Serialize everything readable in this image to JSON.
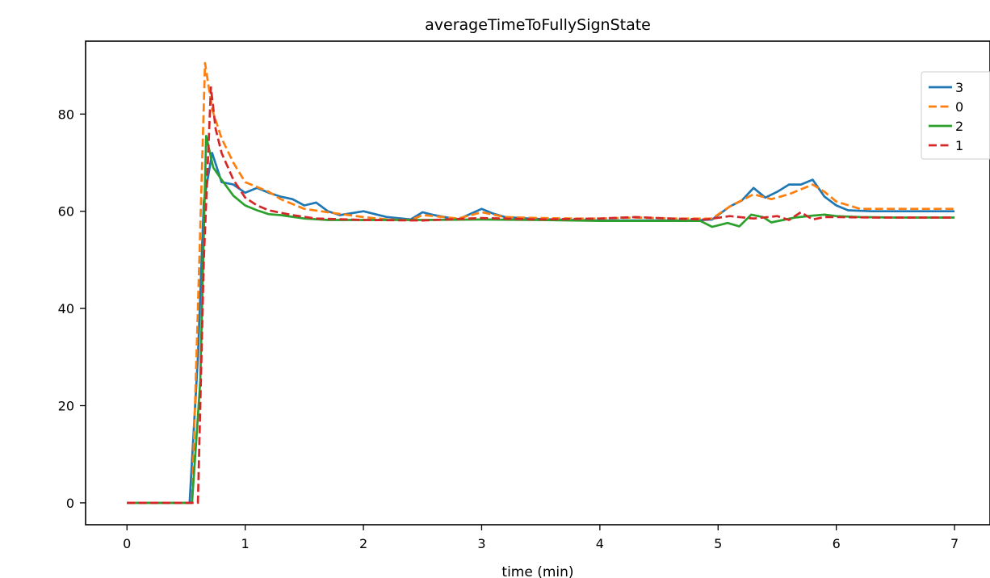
{
  "chart_data": {
    "type": "line",
    "title": "averageTimeToFullySignState",
    "xlabel": "time (min)",
    "ylabel": "",
    "xlim": [
      -0.35,
      7.3
    ],
    "ylim": [
      -4.5,
      95
    ],
    "xticks": [
      0,
      1,
      2,
      3,
      4,
      5,
      6,
      7
    ],
    "yticks": [
      0,
      20,
      40,
      60,
      80
    ],
    "grid": false,
    "legend_position": "top-right",
    "series": [
      {
        "name": "3",
        "color": "#1f77b4",
        "dash": "solid",
        "x": [
          0,
          0.53,
          0.6,
          0.65,
          0.72,
          0.8,
          0.9,
          1.0,
          1.1,
          1.2,
          1.3,
          1.4,
          1.5,
          1.6,
          1.7,
          1.8,
          2.0,
          2.2,
          2.4,
          2.5,
          2.6,
          2.8,
          3.0,
          3.1,
          3.2,
          3.4,
          3.6,
          3.8,
          4.0,
          4.2,
          4.4,
          4.6,
          4.8,
          4.95,
          5.1,
          5.2,
          5.3,
          5.4,
          5.5,
          5.6,
          5.7,
          5.8,
          5.9,
          6.0,
          6.1,
          6.3,
          6.5,
          7.0
        ],
        "y": [
          0,
          0,
          30,
          62,
          72,
          66,
          65.5,
          63.8,
          64.8,
          63.8,
          63,
          62.5,
          61.2,
          61.8,
          60,
          59.2,
          60,
          58.8,
          58.3,
          59.8,
          59.2,
          58.3,
          60.5,
          59.5,
          58.8,
          58.5,
          58.3,
          58.2,
          58.1,
          58.1,
          58.1,
          58.1,
          58.1,
          58.3,
          61,
          62.2,
          64.8,
          62.8,
          64,
          65.5,
          65.5,
          66.5,
          63,
          61.2,
          60.2,
          60,
          60,
          60
        ]
      },
      {
        "name": "0",
        "color": "#ff7f0e",
        "dash": "dashed",
        "x": [
          0,
          0.55,
          0.6,
          0.66,
          0.72,
          0.8,
          0.9,
          1.0,
          1.1,
          1.2,
          1.3,
          1.5,
          1.7,
          2.0,
          2.2,
          2.4,
          2.5,
          2.6,
          2.8,
          3.0,
          3.2,
          3.5,
          3.8,
          4.0,
          4.3,
          4.6,
          4.8,
          4.95,
          5.1,
          5.3,
          5.45,
          5.6,
          5.8,
          5.9,
          6.0,
          6.2,
          6.5,
          7.0
        ],
        "y": [
          0,
          0,
          40,
          90.5,
          81,
          75,
          70,
          66,
          65,
          64,
          62.5,
          60.5,
          59.8,
          58.8,
          58.3,
          58.2,
          59.2,
          59,
          58.5,
          59.8,
          58.8,
          58.6,
          58.5,
          58.5,
          58.7,
          58.5,
          58.5,
          58.5,
          61,
          63.5,
          62.5,
          63.5,
          65.5,
          64,
          62,
          60.5,
          60.5,
          60.5
        ]
      },
      {
        "name": "2",
        "color": "#2ca02c",
        "dash": "solid",
        "x": [
          0,
          0.55,
          0.62,
          0.67,
          0.73,
          0.8,
          0.9,
          1.0,
          1.1,
          1.2,
          1.3,
          1.5,
          1.7,
          2.0,
          2.5,
          3.0,
          3.5,
          4.0,
          4.5,
          4.85,
          4.95,
          5.08,
          5.18,
          5.28,
          5.38,
          5.45,
          5.55,
          5.65,
          5.8,
          5.9,
          6.0,
          6.2,
          6.5,
          7.0
        ],
        "y": [
          0,
          0,
          25,
          75.5,
          69,
          66.5,
          63.2,
          61.2,
          60.2,
          59.4,
          59.2,
          58.5,
          58.2,
          58.2,
          58.2,
          58.3,
          58.2,
          58,
          58,
          58,
          56.8,
          57.6,
          56.9,
          59.3,
          58.8,
          57.7,
          58.2,
          58.7,
          59.1,
          59.3,
          59,
          58.8,
          58.7,
          58.7
        ]
      },
      {
        "name": "1",
        "color": "#d62728",
        "dash": "dashed",
        "x": [
          0,
          0.6,
          0.65,
          0.71,
          0.75,
          0.8,
          0.9,
          1.0,
          1.1,
          1.2,
          1.4,
          1.6,
          2.0,
          2.5,
          3.0,
          3.5,
          4.0,
          4.3,
          4.6,
          4.9,
          5.1,
          5.3,
          5.5,
          5.6,
          5.7,
          5.8,
          5.9,
          6.0,
          6.3,
          7.0
        ],
        "y": [
          0,
          0,
          50,
          85.5,
          77,
          72,
          66.5,
          62.8,
          61.2,
          60.2,
          59.2,
          58.5,
          58.2,
          58.1,
          58.6,
          58.3,
          58.5,
          58.8,
          58.5,
          58.3,
          59,
          58.5,
          59,
          58.2,
          59.8,
          58.3,
          58.8,
          58.8,
          58.7,
          58.7
        ]
      }
    ]
  }
}
